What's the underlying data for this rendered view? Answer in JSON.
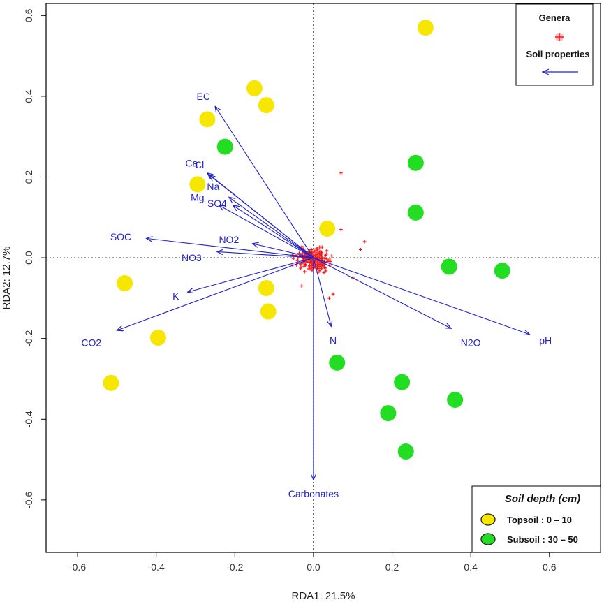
{
  "chart_data": {
    "type": "scatter",
    "title": "",
    "xlabel": "RDA1: 21.5%",
    "ylabel": "RDA2: 12.7%",
    "xlim": [
      -0.68,
      0.73
    ],
    "ylim": [
      -0.73,
      0.63
    ],
    "xticks": [
      "-0.6",
      "-0.4",
      "-0.2",
      "0.0",
      "0.2",
      "0.4",
      "0.6"
    ],
    "yticks": [
      "-0.6",
      "-0.4",
      "-0.2",
      "0.0",
      "0.2",
      "0.4",
      "0.6"
    ],
    "vectors": [
      {
        "label": "EC",
        "x": -0.25,
        "y": 0.375,
        "lx": -0.28,
        "ly": 0.4
      },
      {
        "label": "Ca",
        "x": -0.27,
        "y": 0.21,
        "lx": -0.31,
        "ly": 0.235
      },
      {
        "label": "Cl",
        "x": -0.265,
        "y": 0.205,
        "lx": -0.29,
        "ly": 0.23
      },
      {
        "label": "Na",
        "x": -0.215,
        "y": 0.15,
        "lx": -0.255,
        "ly": 0.177
      },
      {
        "label": "Mg",
        "x": -0.24,
        "y": 0.13,
        "lx": -0.295,
        "ly": 0.15
      },
      {
        "label": "SO4",
        "x": -0.205,
        "y": 0.13,
        "lx": -0.245,
        "ly": 0.135
      },
      {
        "label": "SOC",
        "x": -0.425,
        "y": 0.048,
        "lx": -0.49,
        "ly": 0.052
      },
      {
        "label": "NO2",
        "x": -0.155,
        "y": 0.035,
        "lx": -0.215,
        "ly": 0.045
      },
      {
        "label": "NO3",
        "x": -0.245,
        "y": 0.015,
        "lx": -0.31,
        "ly": 0.0
      },
      {
        "label": "K",
        "x": -0.32,
        "y": -0.085,
        "lx": -0.35,
        "ly": -0.095
      },
      {
        "label": "CO2",
        "x": -0.5,
        "y": -0.18,
        "lx": -0.565,
        "ly": -0.21
      },
      {
        "label": "N",
        "x": 0.045,
        "y": -0.17,
        "lx": 0.05,
        "ly": -0.205
      },
      {
        "label": "N2O",
        "x": 0.35,
        "y": -0.175,
        "lx": 0.4,
        "ly": -0.21
      },
      {
        "label": "pH",
        "x": 0.55,
        "y": -0.19,
        "lx": 0.59,
        "ly": -0.205
      },
      {
        "label": "Carbonates",
        "x": 0.0,
        "y": -0.55,
        "lx": 0.0,
        "ly": -0.585
      }
    ],
    "series": [
      {
        "name": "Topsoil : 0 – 10",
        "color": "#f7e600",
        "points": [
          [
            0.285,
            0.57
          ],
          [
            -0.15,
            0.42
          ],
          [
            -0.12,
            0.378
          ],
          [
            -0.27,
            0.343
          ],
          [
            -0.295,
            0.182
          ],
          [
            0.035,
            0.072
          ],
          [
            -0.48,
            -0.063
          ],
          [
            -0.12,
            -0.075
          ],
          [
            -0.115,
            -0.133
          ],
          [
            -0.395,
            -0.198
          ],
          [
            -0.515,
            -0.31
          ]
        ]
      },
      {
        "name": "Subsoil : 30 – 50",
        "color": "#22dd22",
        "points": [
          [
            -0.225,
            0.275
          ],
          [
            0.26,
            0.235
          ],
          [
            0.26,
            0.112
          ],
          [
            0.345,
            -0.022
          ],
          [
            0.48,
            -0.032
          ],
          [
            0.06,
            -0.26
          ],
          [
            0.225,
            -0.308
          ],
          [
            0.36,
            -0.352
          ],
          [
            0.19,
            -0.385
          ],
          [
            0.235,
            -0.48
          ]
        ]
      }
    ],
    "genera_outliers": [
      [
        0.07,
        0.21
      ],
      [
        0.13,
        0.04
      ],
      [
        0.12,
        0.02
      ],
      [
        0.07,
        0.07
      ],
      [
        0.05,
        -0.09
      ],
      [
        -0.03,
        -0.07
      ],
      [
        0.1,
        -0.05
      ],
      [
        0.04,
        -0.1
      ]
    ],
    "legend_top": {
      "title": "Genera",
      "vectors_label": "Soil properties"
    },
    "legend_bottom": {
      "title": "Soil depth (cm)",
      "items": [
        "Topsoil : 0 – 10",
        "Subsoil : 30 – 50"
      ]
    }
  }
}
